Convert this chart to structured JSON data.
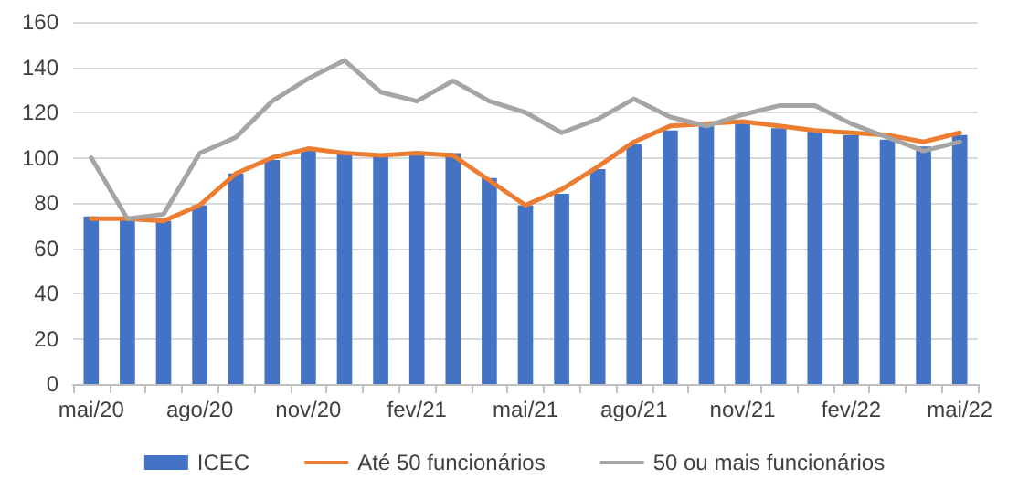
{
  "chart_data": {
    "type": "bar",
    "categories": [
      "mai/20",
      null,
      null,
      "ago/20",
      null,
      null,
      "nov/20",
      null,
      null,
      "fev/21",
      null,
      null,
      "mai/21",
      null,
      null,
      "ago/21",
      null,
      null,
      "nov/21",
      null,
      null,
      "fev/22",
      null,
      null,
      "mai/22"
    ],
    "series": [
      {
        "name": "ICEC",
        "color": "#4472c4",
        "values": [
          74,
          73,
          72,
          79,
          93,
          99,
          103,
          102,
          101,
          102,
          102,
          91,
          79,
          84,
          95,
          106,
          112,
          114,
          116,
          113,
          112,
          110,
          108,
          105,
          110
        ]
      },
      {
        "name": "Até 50 funcionários",
        "type": "line",
        "color": "#ed7d31",
        "values": [
          73,
          73,
          72,
          79,
          93,
          100,
          104,
          102,
          101,
          102,
          101,
          90,
          79,
          86,
          96,
          107,
          114,
          115,
          116,
          114,
          112,
          111,
          110,
          107,
          111
        ]
      },
      {
        "name": "50 ou mais funcionários",
        "type": "line",
        "color": "#a5a5a5",
        "values": [
          100,
          73,
          75,
          102,
          109,
          125,
          135,
          143,
          129,
          125,
          134,
          125,
          120,
          111,
          117,
          126,
          118,
          114,
          119,
          123,
          123,
          115,
          109,
          103,
          107
        ]
      }
    ],
    "ylim": [
      0,
      160
    ],
    "yticks": [
      0,
      20,
      40,
      60,
      80,
      100,
      120,
      140,
      160
    ],
    "grid": "y",
    "legend": "bottom",
    "marker": "none",
    "line_style": "solid"
  }
}
